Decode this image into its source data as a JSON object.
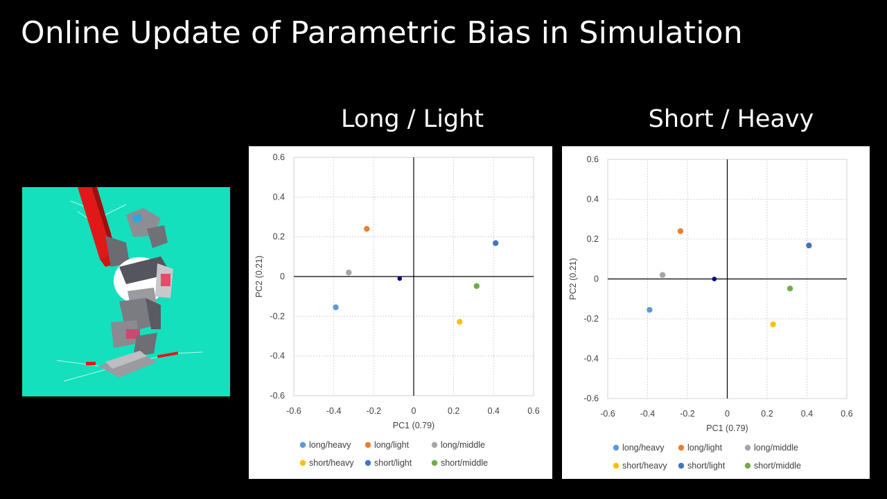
{
  "title": "Online Update of Parametric Bias in Simulation",
  "colors": {
    "background": "#000000",
    "sim_background": "#14e0bd",
    "long_heavy": "#5b9bd5",
    "long_light": "#ed7d31",
    "long_middle": "#a5a5a5",
    "short_heavy": "#ffc000",
    "short_light": "#4472c4",
    "short_middle": "#70ad47",
    "current": "#00008b"
  },
  "simulation": {
    "description_icon": "humanoid-robot-simulation"
  },
  "chart_data": [
    {
      "type": "scatter",
      "title": "Long / Light",
      "xlabel": "PC1 (0.79)",
      "ylabel": "PC2 (0.21)",
      "xlim": [
        -0.6,
        0.6
      ],
      "ylim": [
        -0.6,
        0.6
      ],
      "xticks": [
        "-0.6",
        "-0.4",
        "-0.2",
        "0",
        "0.2",
        "0.4",
        "0.6"
      ],
      "yticks": [
        "0.6",
        "0.4",
        "0.2",
        "0",
        "-0.2",
        "-0.4",
        "-0.6"
      ],
      "grid": true,
      "legend_position": "bottom",
      "series": [
        {
          "name": "long/heavy",
          "color": "#5b9bd5",
          "x": [
            -0.39
          ],
          "y": [
            -0.155
          ]
        },
        {
          "name": "long/light",
          "color": "#ed7d31",
          "x": [
            -0.235
          ],
          "y": [
            0.24
          ]
        },
        {
          "name": "long/middle",
          "color": "#a5a5a5",
          "x": [
            -0.325
          ],
          "y": [
            0.02
          ]
        },
        {
          "name": "short/heavy",
          "color": "#ffc000",
          "x": [
            0.23
          ],
          "y": [
            -0.228
          ]
        },
        {
          "name": "short/light",
          "color": "#4472c4",
          "x": [
            0.41
          ],
          "y": [
            0.168
          ]
        },
        {
          "name": "short/middle",
          "color": "#70ad47",
          "x": [
            0.315
          ],
          "y": [
            -0.048
          ]
        }
      ],
      "current_point": {
        "x": -0.07,
        "y": -0.01,
        "color": "#00008b"
      }
    },
    {
      "type": "scatter",
      "title": "Short / Heavy",
      "xlabel": "PC1 (0.79)",
      "ylabel": "PC2 (0.21)",
      "xlim": [
        -0.6,
        0.6
      ],
      "ylim": [
        -0.6,
        0.6
      ],
      "xticks": [
        "-0.6",
        "-0.4",
        "-0.2",
        "0",
        "0.2",
        "0.4",
        "0.6"
      ],
      "yticks": [
        "0.6",
        "0.4",
        "0.2",
        "0",
        "-0.2",
        "-0.4",
        "-0.6"
      ],
      "grid": true,
      "legend_position": "bottom",
      "series": [
        {
          "name": "long/heavy",
          "color": "#5b9bd5",
          "x": [
            -0.39
          ],
          "y": [
            -0.155
          ]
        },
        {
          "name": "long/light",
          "color": "#ed7d31",
          "x": [
            -0.235
          ],
          "y": [
            0.24
          ]
        },
        {
          "name": "long/middle",
          "color": "#a5a5a5",
          "x": [
            -0.325
          ],
          "y": [
            0.02
          ]
        },
        {
          "name": "short/heavy",
          "color": "#ffc000",
          "x": [
            0.23
          ],
          "y": [
            -0.228
          ]
        },
        {
          "name": "short/light",
          "color": "#4472c4",
          "x": [
            0.41
          ],
          "y": [
            0.168
          ]
        },
        {
          "name": "short/middle",
          "color": "#70ad47",
          "x": [
            0.315
          ],
          "y": [
            -0.048
          ]
        }
      ],
      "current_point": {
        "x": -0.065,
        "y": 0.0,
        "color": "#00008b"
      }
    }
  ]
}
